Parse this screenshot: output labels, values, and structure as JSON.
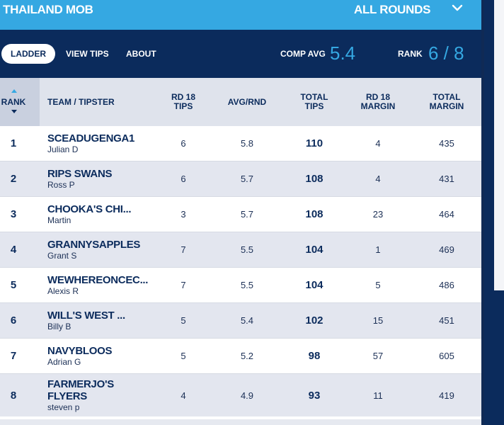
{
  "header": {
    "competition": "THAILAND MOB",
    "rounds_selector": "ALL ROUNDS"
  },
  "nav": {
    "tabs": [
      "LADDER",
      "VIEW TIPS",
      "ABOUT"
    ],
    "active_tab": "LADDER",
    "comp_avg_label": "COMP AVG",
    "comp_avg_value": "5.4",
    "rank_label": "RANK",
    "rank_value": "6 / 8"
  },
  "table": {
    "columns": {
      "rank": "RANK",
      "team": "TEAM / TIPSTER",
      "rd18_tips": "RD 18 TIPS",
      "avg_rnd": "AVG/RND",
      "total_tips": "TOTAL TIPS",
      "rd18_margin": "RD 18 MARGIN",
      "total_margin": "TOTAL MARGIN"
    },
    "rows": [
      {
        "rank": "1",
        "team": "SCEADUGENGA1",
        "tipster": "Julian D",
        "rd18_tips": "6",
        "avg": "5.8",
        "total": "110",
        "rd18_margin": "4",
        "total_margin": "435"
      },
      {
        "rank": "2",
        "team": "RIPS SWANS",
        "tipster": "Ross P",
        "rd18_tips": "6",
        "avg": "5.7",
        "total": "108",
        "rd18_margin": "4",
        "total_margin": "431"
      },
      {
        "rank": "3",
        "team": "CHOOKA'S CHI...",
        "tipster": "Martin",
        "rd18_tips": "3",
        "avg": "5.7",
        "total": "108",
        "rd18_margin": "23",
        "total_margin": "464"
      },
      {
        "rank": "4",
        "team": "GRANNYSAPPLES",
        "tipster": "Grant S",
        "rd18_tips": "7",
        "avg": "5.5",
        "total": "104",
        "rd18_margin": "1",
        "total_margin": "469"
      },
      {
        "rank": "5",
        "team": "WEWHEREONCEC...",
        "tipster": "Alexis R",
        "rd18_tips": "7",
        "avg": "5.5",
        "total": "104",
        "rd18_margin": "5",
        "total_margin": "486"
      },
      {
        "rank": "6",
        "team": "WILL'S WEST ...",
        "tipster": "Billy B",
        "rd18_tips": "5",
        "avg": "5.4",
        "total": "102",
        "rd18_margin": "15",
        "total_margin": "451"
      },
      {
        "rank": "7",
        "team": "NAVYBLOOS",
        "tipster": "Adrian G",
        "rd18_tips": "5",
        "avg": "5.2",
        "total": "98",
        "rd18_margin": "57",
        "total_margin": "605"
      },
      {
        "rank": "8",
        "team": "FARMERJO'S FLYERS",
        "tipster": "steven p",
        "rd18_tips": "4",
        "avg": "4.9",
        "total": "93",
        "rd18_margin": "11",
        "total_margin": "419"
      }
    ]
  },
  "colors": {
    "navy": "#0b2b5c",
    "accent_blue": "#35a8e2",
    "header_gray": "#dfe3ec",
    "alt_row": "#e3e6ef"
  }
}
